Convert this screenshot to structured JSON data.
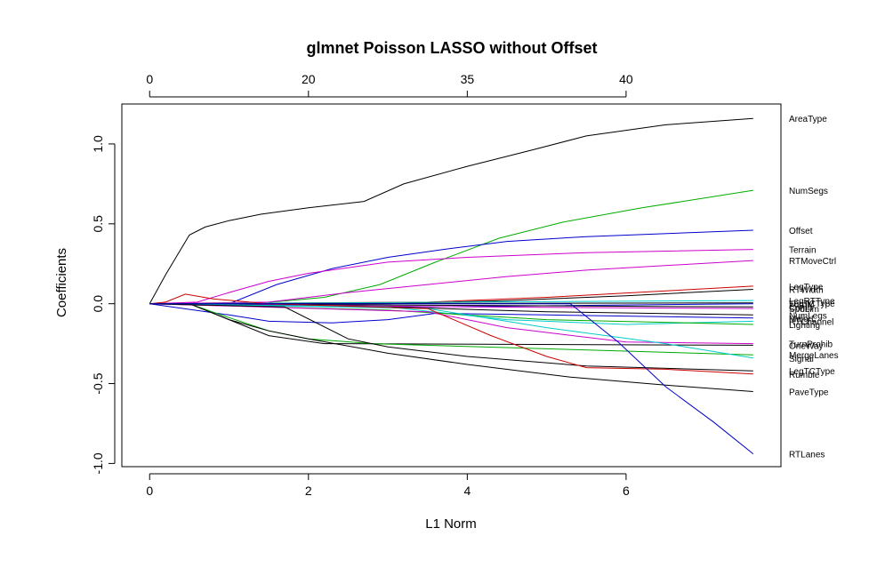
{
  "chart_data": {
    "type": "line",
    "title": "glmnet Poisson LASSO without Offset",
    "xlabel": "L1 Norm",
    "ylabel": "Coefficients",
    "xlim": [
      -0.35,
      7.95
    ],
    "ylim": [
      -1.02,
      1.25
    ],
    "x_ticks": [
      "0",
      "2",
      "4",
      "6"
    ],
    "y_ticks": [
      "-1.0",
      "-0.5",
      "0.0",
      "0.5",
      "1.0"
    ],
    "top_axis": {
      "ticks": [
        {
          "x": 0,
          "label": "0"
        },
        {
          "x": 2,
          "label": "20"
        },
        {
          "x": 4,
          "label": "35"
        },
        {
          "x": 6,
          "label": "40"
        }
      ]
    },
    "grid": false,
    "series": [
      {
        "name": "AreaType",
        "color": "#000000",
        "label_y": 1.16,
        "points": [
          [
            0,
            0
          ],
          [
            0.2,
            0.18
          ],
          [
            0.5,
            0.43
          ],
          [
            0.7,
            0.48
          ],
          [
            1,
            0.52
          ],
          [
            1.4,
            0.56
          ],
          [
            2,
            0.6
          ],
          [
            2.7,
            0.64
          ],
          [
            3.2,
            0.75
          ],
          [
            4,
            0.86
          ],
          [
            4.8,
            0.96
          ],
          [
            5.5,
            1.05
          ],
          [
            6.5,
            1.12
          ],
          [
            7.6,
            1.16
          ]
        ]
      },
      {
        "name": "NumSegs",
        "color": "#00aa00",
        "label_y": 0.71,
        "points": [
          [
            0,
            0
          ],
          [
            1.3,
            0
          ],
          [
            2.2,
            0.04
          ],
          [
            2.9,
            0.12
          ],
          [
            3.6,
            0.26
          ],
          [
            4.4,
            0.41
          ],
          [
            5.2,
            0.51
          ],
          [
            6.2,
            0.6
          ],
          [
            7.6,
            0.71
          ]
        ]
      },
      {
        "name": "Offset",
        "color": "#0000cc",
        "label_y": 0.46,
        "points": [
          [
            0,
            0
          ],
          [
            1,
            0
          ],
          [
            1.6,
            0.12
          ],
          [
            2.3,
            0.22
          ],
          [
            3,
            0.29
          ],
          [
            3.7,
            0.34
          ],
          [
            4.5,
            0.39
          ],
          [
            5.5,
            0.42
          ],
          [
            7.6,
            0.46
          ]
        ]
      },
      {
        "name": "Terrain",
        "color": "#cc00cc",
        "label_y": 0.34,
        "points": [
          [
            0,
            0
          ],
          [
            0.6,
            0.01
          ],
          [
            1,
            0.07
          ],
          [
            1.5,
            0.14
          ],
          [
            2,
            0.19
          ],
          [
            3,
            0.26
          ],
          [
            4,
            0.29
          ],
          [
            5.5,
            0.32
          ],
          [
            7.6,
            0.34
          ]
        ]
      },
      {
        "name": "RTMoveCtrl",
        "color": "#cc00cc",
        "label_y": 0.27,
        "points": [
          [
            0,
            0
          ],
          [
            1.5,
            0.01
          ],
          [
            2.5,
            0.07
          ],
          [
            3.5,
            0.12
          ],
          [
            4.5,
            0.17
          ],
          [
            5.5,
            0.21
          ],
          [
            7.6,
            0.27
          ]
        ]
      },
      {
        "name": "LegType",
        "color": "#cc0000",
        "label_y": 0.11,
        "points": [
          [
            0,
            0
          ],
          [
            3.5,
            0.01
          ],
          [
            5,
            0.04
          ],
          [
            6.5,
            0.08
          ],
          [
            7.6,
            0.11
          ]
        ]
      },
      {
        "name": "RTWidth",
        "color": "#000000",
        "label_y": 0.09,
        "points": [
          [
            0,
            0
          ],
          [
            3,
            0
          ],
          [
            4.5,
            0.02
          ],
          [
            6,
            0.05
          ],
          [
            7.6,
            0.09
          ]
        ]
      },
      {
        "name": "LegRTType",
        "color": "#00cccc",
        "label_y": 0.02,
        "points": [
          [
            0,
            0
          ],
          [
            7.6,
            0.02
          ]
        ]
      },
      {
        "name": "LegTCType",
        "color": "#000000",
        "label_y": 0.005,
        "points": [
          [
            0,
            0
          ],
          [
            7.6,
            0.005
          ]
        ]
      },
      {
        "name": "TurnM",
        "color": "#0000cc",
        "label_y": 0.0,
        "points": [
          [
            0,
            0
          ],
          [
            3.5,
            -0.02
          ],
          [
            7.6,
            0.0
          ]
        ]
      },
      {
        "name": "Comb",
        "color": "#000000",
        "label_y": -0.02,
        "points": [
          [
            0,
            0
          ],
          [
            7.6,
            -0.02
          ]
        ]
      },
      {
        "name": "SpdLim",
        "color": "#cc00cc",
        "label_y": -0.03,
        "points": [
          [
            0,
            0
          ],
          [
            4,
            -0.02
          ],
          [
            7.6,
            -0.03
          ]
        ]
      },
      {
        "name": "NumLegs",
        "color": "#000000",
        "label_y": -0.07,
        "points": [
          [
            0,
            0
          ],
          [
            3,
            -0.02
          ],
          [
            5,
            -0.05
          ],
          [
            7.6,
            -0.07
          ]
        ]
      },
      {
        "name": "MajorL",
        "color": "#0000cc",
        "label_y": -0.09,
        "points": [
          [
            0,
            0
          ],
          [
            1,
            -0.07
          ],
          [
            1.5,
            -0.11
          ],
          [
            2.3,
            -0.12
          ],
          [
            3,
            -0.1
          ],
          [
            3.6,
            -0.06
          ],
          [
            5,
            -0.07
          ],
          [
            7.6,
            -0.09
          ]
        ]
      },
      {
        "name": "RTChannel",
        "color": "#00cccc",
        "label_y": -0.11,
        "points": [
          [
            0,
            0
          ],
          [
            3,
            -0.02
          ],
          [
            4.5,
            -0.1
          ],
          [
            6,
            -0.13
          ],
          [
            7.6,
            -0.11
          ]
        ]
      },
      {
        "name": "Lighting",
        "color": "#00aa00",
        "label_y": -0.13,
        "points": [
          [
            0,
            0
          ],
          [
            3,
            -0.04
          ],
          [
            5,
            -0.1
          ],
          [
            7.6,
            -0.13
          ]
        ]
      },
      {
        "name": "OneWay",
        "color": "#000000",
        "label_y": -0.26,
        "points": [
          [
            0,
            0
          ],
          [
            0.5,
            0
          ],
          [
            1,
            -0.1
          ],
          [
            1.5,
            -0.2
          ],
          [
            2.2,
            -0.25
          ],
          [
            7.6,
            -0.26
          ]
        ]
      },
      {
        "name": "TurnProhib",
        "color": "#cc00cc",
        "label_y": -0.25,
        "points": [
          [
            0,
            0
          ],
          [
            3.5,
            -0.05
          ],
          [
            4.5,
            -0.15
          ],
          [
            6,
            -0.24
          ],
          [
            7.6,
            -0.25
          ]
        ]
      },
      {
        "name": "MergeLanes",
        "color": "#00aa00",
        "label_y": -0.32,
        "points": [
          [
            0,
            0
          ],
          [
            0.5,
            0
          ],
          [
            0.9,
            -0.07
          ],
          [
            1.5,
            -0.17
          ],
          [
            2,
            -0.22
          ],
          [
            2.8,
            -0.25
          ],
          [
            7.6,
            -0.32
          ]
        ]
      },
      {
        "name": "Signal",
        "color": "#00cccc",
        "label_y": -0.34,
        "points": [
          [
            0,
            0
          ],
          [
            3.5,
            -0.03
          ],
          [
            5,
            -0.15
          ],
          [
            6.5,
            -0.25
          ],
          [
            7.6,
            -0.34
          ]
        ]
      },
      {
        "name": "LegTCType",
        "color": "#000000",
        "label_y": -0.42,
        "points": [
          [
            0,
            0
          ],
          [
            1.7,
            -0.02
          ],
          [
            2.5,
            -0.22
          ],
          [
            3,
            -0.27
          ],
          [
            4,
            -0.33
          ],
          [
            5.5,
            -0.39
          ],
          [
            7.6,
            -0.42
          ]
        ]
      },
      {
        "name": "Rumble",
        "color": "#cc0000",
        "label_y": -0.44,
        "points": [
          [
            0,
            0
          ],
          [
            0.2,
            0.01
          ],
          [
            0.45,
            0.06
          ],
          [
            0.8,
            0.03
          ],
          [
            1.5,
            0.0
          ],
          [
            3.5,
            -0.03
          ],
          [
            4.3,
            -0.2
          ],
          [
            5,
            -0.33
          ],
          [
            5.5,
            -0.4
          ],
          [
            6.5,
            -0.41
          ],
          [
            7.6,
            -0.44
          ]
        ]
      },
      {
        "name": "PaveType",
        "color": "#000000",
        "label_y": -0.55,
        "points": [
          [
            0,
            0
          ],
          [
            0.5,
            0
          ],
          [
            1,
            -0.1
          ],
          [
            1.5,
            -0.17
          ],
          [
            2,
            -0.22
          ],
          [
            3,
            -0.31
          ],
          [
            4,
            -0.38
          ],
          [
            5.3,
            -0.46
          ],
          [
            6.5,
            -0.51
          ],
          [
            7.6,
            -0.55
          ]
        ]
      },
      {
        "name": "RTLanes",
        "color": "#0000cc",
        "label_y": -0.94,
        "points": [
          [
            0,
            0
          ],
          [
            5.3,
            0
          ],
          [
            5.9,
            -0.24
          ],
          [
            6.5,
            -0.52
          ],
          [
            7.1,
            -0.74
          ],
          [
            7.6,
            -0.94
          ]
        ]
      }
    ]
  }
}
